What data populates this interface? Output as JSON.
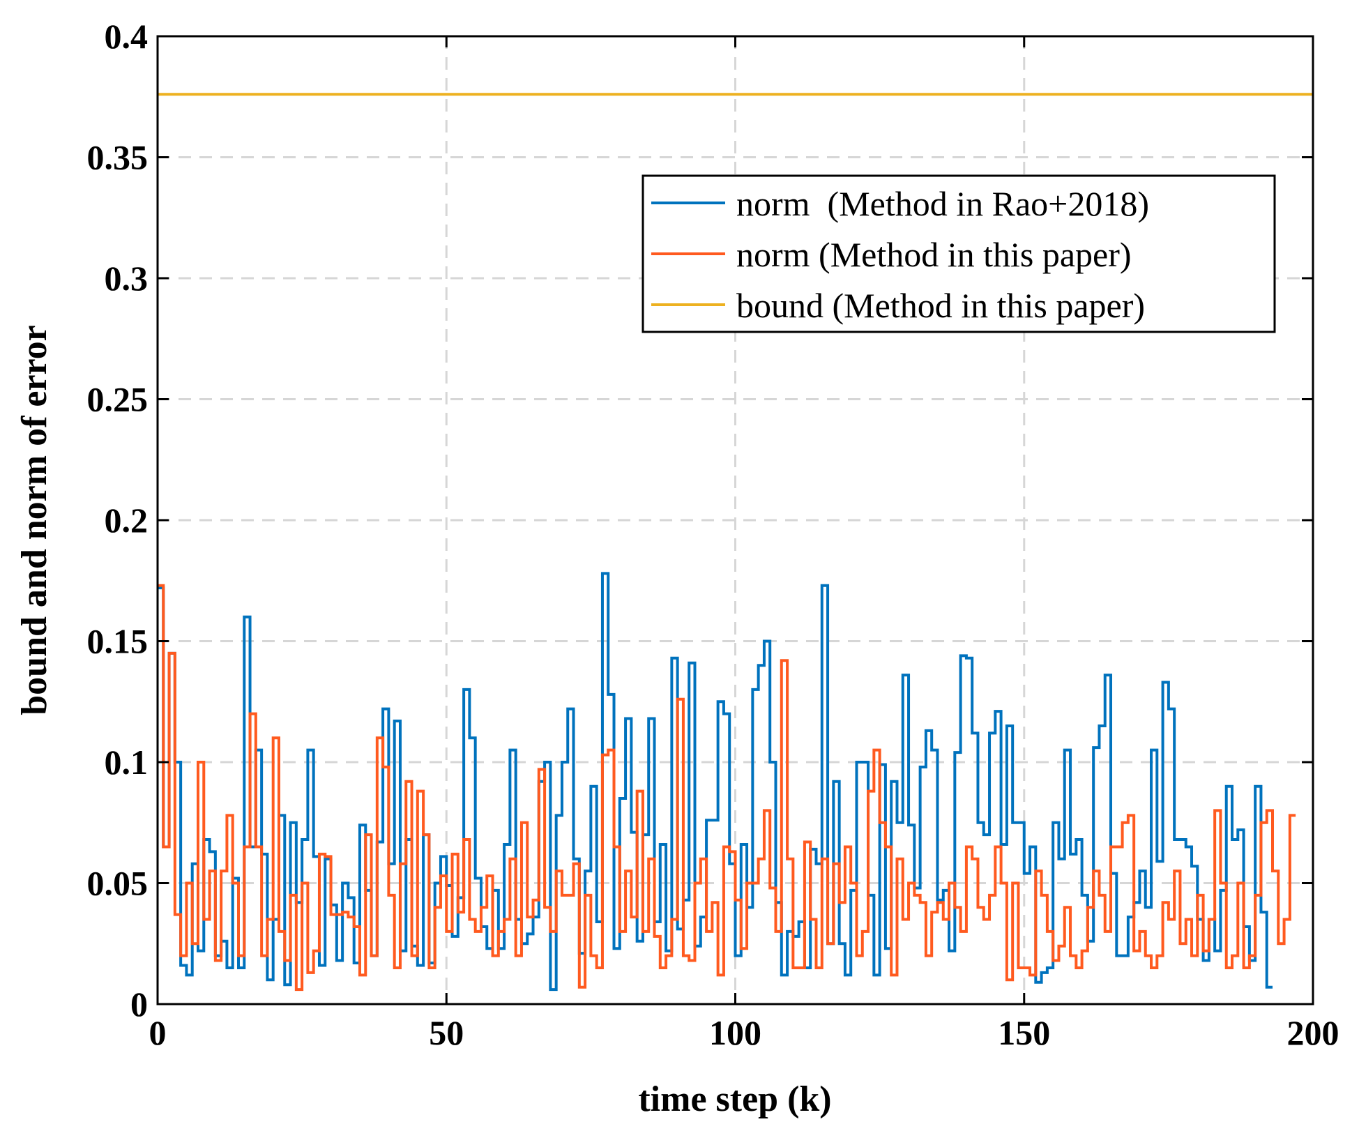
{
  "chart_data": {
    "type": "line",
    "style": "stairs",
    "xlabel": "time step (k)",
    "ylabel": "bound and norm of error",
    "xlim": [
      0,
      200
    ],
    "ylim": [
      0,
      0.4
    ],
    "xticks": [
      0,
      50,
      100,
      150,
      200
    ],
    "xtick_labels": [
      "0",
      "50",
      "100",
      "150",
      "200"
    ],
    "yticks": [
      0,
      0.05,
      0.1,
      0.15,
      0.2,
      0.25,
      0.3,
      0.35,
      0.4
    ],
    "ytick_labels": [
      "0",
      "0.05",
      "0.1",
      "0.15",
      "0.2",
      "0.25",
      "0.3",
      "0.35",
      "0.4"
    ],
    "grid": true,
    "legend_position": "top-right",
    "series": [
      {
        "name": "norm  (Method in Rao+2018)",
        "color": "#0072BD",
        "values": [
          0.172,
          0.065,
          0.145,
          0.1,
          0.016,
          0.012,
          0.058,
          0.022,
          0.068,
          0.063,
          0.02,
          0.026,
          0.015,
          0.052,
          0.015,
          0.16,
          0.065,
          0.105,
          0.062,
          0.01,
          0.035,
          0.078,
          0.008,
          0.075,
          0.042,
          0.068,
          0.105,
          0.061,
          0.016,
          0.06,
          0.041,
          0.018,
          0.05,
          0.044,
          0.017,
          0.074,
          0.047,
          0.02,
          0.067,
          0.122,
          0.058,
          0.117,
          0.022,
          0.068,
          0.024,
          0.016,
          0.07,
          0.017,
          0.05,
          0.061,
          0.049,
          0.028,
          0.044,
          0.13,
          0.11,
          0.052,
          0.032,
          0.023,
          0.047,
          0.023,
          0.066,
          0.105,
          0.035,
          0.025,
          0.029,
          0.036,
          0.092,
          0.1,
          0.006,
          0.078,
          0.1,
          0.122,
          0.06,
          0.021,
          0.055,
          0.09,
          0.034,
          0.178,
          0.128,
          0.023,
          0.085,
          0.118,
          0.071,
          0.026,
          0.07,
          0.118,
          0.034,
          0.066,
          0.022,
          0.143,
          0.031,
          0.043,
          0.141,
          0.024,
          0.036,
          0.076,
          0.076,
          0.125,
          0.12,
          0.058,
          0.02,
          0.066,
          0.04,
          0.13,
          0.14,
          0.15,
          0.1,
          0.042,
          0.012,
          0.03,
          0.028,
          0.034,
          0.015,
          0.064,
          0.058,
          0.173,
          0.025,
          0.092,
          0.025,
          0.012,
          0.047,
          0.1,
          0.1,
          0.045,
          0.012,
          0.099,
          0.023,
          0.092,
          0.075,
          0.136,
          0.074,
          0.048,
          0.098,
          0.113,
          0.105,
          0.043,
          0.047,
          0.022,
          0.104,
          0.144,
          0.143,
          0.112,
          0.075,
          0.07,
          0.112,
          0.121,
          0.066,
          0.115,
          0.075,
          0.075,
          0.054,
          0.065,
          0.009,
          0.013,
          0.015,
          0.075,
          0.06,
          0.105,
          0.062,
          0.068,
          0.045,
          0.026,
          0.106,
          0.115,
          0.136,
          0.054,
          0.02,
          0.02,
          0.036,
          0.042,
          0.055,
          0.04,
          0.105,
          0.059,
          0.133,
          0.122,
          0.068,
          0.068,
          0.065,
          0.057,
          0.035,
          0.018,
          0.035,
          0.022,
          0.047,
          0.09,
          0.068,
          0.072,
          0.032,
          0.018,
          0.09,
          0.038,
          0.007
        ]
      },
      {
        "name": "norm (Method in this paper)",
        "color": "#FF5A1F",
        "values": [
          0.173,
          0.065,
          0.145,
          0.037,
          0.02,
          0.05,
          0.025,
          0.1,
          0.035,
          0.055,
          0.018,
          0.055,
          0.078,
          0.05,
          0.02,
          0.065,
          0.12,
          0.065,
          0.02,
          0.035,
          0.11,
          0.03,
          0.018,
          0.045,
          0.006,
          0.05,
          0.013,
          0.022,
          0.062,
          0.061,
          0.037,
          0.037,
          0.038,
          0.036,
          0.032,
          0.012,
          0.07,
          0.02,
          0.11,
          0.098,
          0.045,
          0.015,
          0.058,
          0.092,
          0.02,
          0.088,
          0.07,
          0.015,
          0.04,
          0.053,
          0.03,
          0.062,
          0.038,
          0.068,
          0.035,
          0.03,
          0.04,
          0.053,
          0.02,
          0.03,
          0.035,
          0.06,
          0.02,
          0.075,
          0.036,
          0.043,
          0.097,
          0.04,
          0.03,
          0.055,
          0.045,
          0.045,
          0.058,
          0.007,
          0.045,
          0.02,
          0.015,
          0.103,
          0.105,
          0.065,
          0.03,
          0.055,
          0.036,
          0.088,
          0.03,
          0.06,
          0.028,
          0.015,
          0.02,
          0.035,
          0.126,
          0.02,
          0.018,
          0.05,
          0.06,
          0.03,
          0.042,
          0.012,
          0.065,
          0.063,
          0.043,
          0.023,
          0.05,
          0.05,
          0.06,
          0.08,
          0.048,
          0.03,
          0.142,
          0.06,
          0.015,
          0.015,
          0.067,
          0.035,
          0.015,
          0.06,
          0.025,
          0.058,
          0.042,
          0.065,
          0.05,
          0.02,
          0.03,
          0.088,
          0.105,
          0.075,
          0.065,
          0.012,
          0.06,
          0.035,
          0.05,
          0.045,
          0.042,
          0.02,
          0.038,
          0.042,
          0.035,
          0.05,
          0.04,
          0.03,
          0.065,
          0.06,
          0.04,
          0.035,
          0.045,
          0.065,
          0.05,
          0.01,
          0.05,
          0.015,
          0.015,
          0.012,
          0.055,
          0.045,
          0.03,
          0.018,
          0.024,
          0.04,
          0.02,
          0.015,
          0.022,
          0.04,
          0.055,
          0.045,
          0.03,
          0.065,
          0.065,
          0.075,
          0.078,
          0.022,
          0.03,
          0.02,
          0.015,
          0.02,
          0.042,
          0.035,
          0.055,
          0.025,
          0.035,
          0.02,
          0.045,
          0.022,
          0.035,
          0.08,
          0.05,
          0.015,
          0.02,
          0.05,
          0.015,
          0.02,
          0.045,
          0.075,
          0.08,
          0.055,
          0.025,
          0.035,
          0.078
        ]
      },
      {
        "name": "bound (Method in this paper)",
        "color": "#EDB120",
        "values": [
          0.376
        ]
      }
    ]
  }
}
